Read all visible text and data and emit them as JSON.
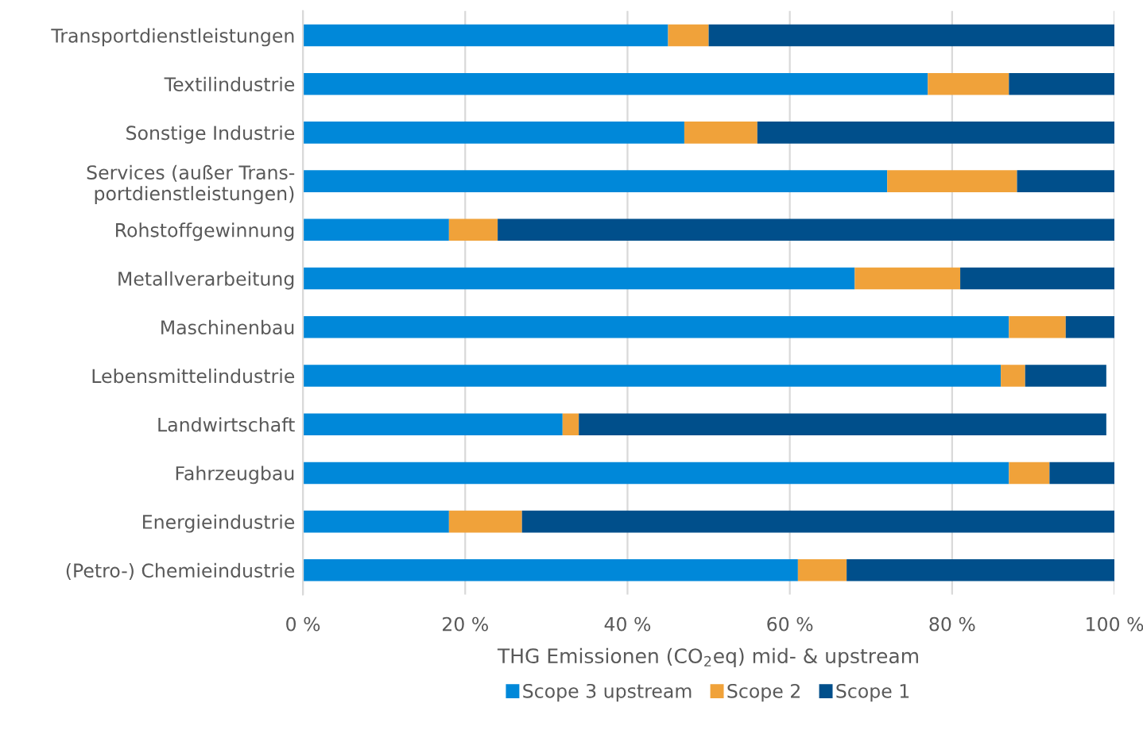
{
  "chart_data": {
    "type": "bar",
    "orientation": "horizontal",
    "stacked": true,
    "categories": [
      "Transportdienstleistungen",
      "Textilindustrie",
      "Sonstige Industrie",
      "Services (außer Trans-\nportdienstleistungen)",
      "Rohstoffgewinnung",
      "Metallverarbeitung",
      "Maschinenbau",
      "Lebensmittelindustrie",
      "Landwirtschaft",
      "Fahrzeugbau",
      "Energieindustrie",
      "(Petro-) Chemieindustrie"
    ],
    "series": [
      {
        "name": "Scope 3 upstream",
        "color": "#0088d9",
        "values": [
          45,
          77,
          47,
          72,
          18,
          68,
          87,
          86,
          32,
          87,
          18,
          61
        ]
      },
      {
        "name": "Scope 2",
        "color": "#f0a23a",
        "values": [
          5,
          10,
          9,
          16,
          6,
          13,
          7,
          3,
          2,
          5,
          9,
          6
        ]
      },
      {
        "name": "Scope 1",
        "color": "#004f8b",
        "values": [
          50,
          13,
          44,
          12,
          76,
          19,
          6,
          10,
          65,
          8,
          73,
          33
        ]
      }
    ],
    "xlabel": "THG Emissionen (CO$_{2}$eq) mid- & upstream",
    "xlim": [
      0,
      100
    ],
    "xticks": [
      {
        "value": 0,
        "label": "0 %"
      },
      {
        "value": 20,
        "label": "20 %"
      },
      {
        "value": 40,
        "label": "40 %"
      },
      {
        "value": 60,
        "label": "60 %"
      },
      {
        "value": 80,
        "label": "80 %"
      },
      {
        "value": 100,
        "label": "100 %"
      }
    ],
    "grid": "x",
    "legend": "bottom"
  }
}
